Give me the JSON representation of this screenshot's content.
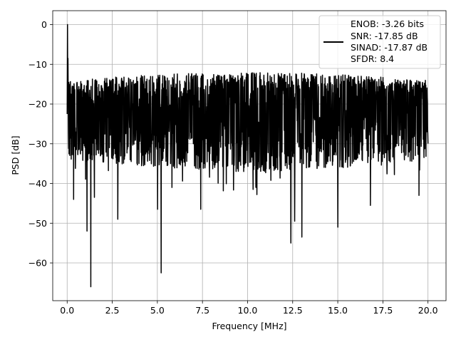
{
  "chart_data": {
    "type": "line",
    "title": "",
    "xlabel": "Frequency [MHz]",
    "ylabel": "PSD [dB]",
    "xlim": [
      -0.8,
      21.0
    ],
    "ylim": [
      -69.5,
      3.5
    ],
    "xticks": [
      0.0,
      2.5,
      5.0,
      7.5,
      10.0,
      12.5,
      15.0,
      17.5,
      20.0
    ],
    "xtick_labels": [
      "0.0",
      "2.5",
      "5.0",
      "7.5",
      "10.0",
      "12.5",
      "15.0",
      "17.5",
      "20.0"
    ],
    "yticks": [
      0,
      -10,
      -20,
      -30,
      -40,
      -50,
      -60
    ],
    "ytick_labels": [
      "0",
      "−10",
      "−20",
      "−30",
      "−40",
      "−50",
      "−60"
    ],
    "grid": true,
    "legend_position": "top-right",
    "series": [
      {
        "name": "ENOB: -3.26 bits\nSNR: -17.85 dB\nSINAD: -17.87 dB\nSFDR: 8.4",
        "color": "#000000",
        "peak": {
          "x": 0.02,
          "y": 0.0
        },
        "x_range": [
          0.0,
          20.0
        ],
        "noise_floor_mean": -22,
        "noise_band_top": [
          -14,
          -12
        ],
        "noise_band_bottom": [
          -34,
          -37
        ],
        "notable_dips": [
          {
            "x": 0.35,
            "y": -44.0
          },
          {
            "x": 1.1,
            "y": -52.0
          },
          {
            "x": 1.3,
            "y": -66.0
          },
          {
            "x": 1.5,
            "y": -43.5
          },
          {
            "x": 2.8,
            "y": -49.0
          },
          {
            "x": 5.0,
            "y": -46.5
          },
          {
            "x": 5.2,
            "y": -62.5
          },
          {
            "x": 5.8,
            "y": -41.0
          },
          {
            "x": 7.4,
            "y": -46.5
          },
          {
            "x": 10.3,
            "y": -41.5
          },
          {
            "x": 12.4,
            "y": -55.0
          },
          {
            "x": 12.6,
            "y": -49.5
          },
          {
            "x": 13.0,
            "y": -53.5
          },
          {
            "x": 15.0,
            "y": -51.0
          },
          {
            "x": 16.8,
            "y": -45.5
          },
          {
            "x": 19.5,
            "y": -43.0
          }
        ]
      }
    ],
    "legend_lines": [
      "ENOB: -3.26 bits",
      "SNR: -17.85 dB",
      "SINAD: -17.87 dB",
      "SFDR: 8.4"
    ]
  }
}
